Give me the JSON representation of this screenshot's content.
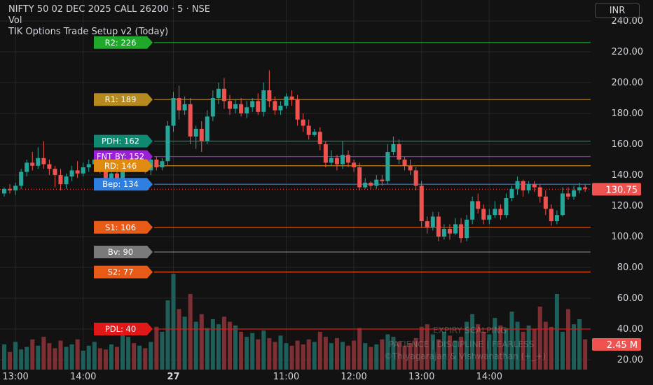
{
  "header": {
    "symbol": "NIFTY 50 02 DEC 2025 CALL 26200 · 5 · NSE",
    "vol_label": "Vol",
    "indicator": "TIK Options Trade Setup v2 (Today)",
    "currency_button": "INR"
  },
  "watermark": {
    "line1": "EXPIRY SCALPING",
    "line2": "PATIENCE | DISCIPLINE | FEARLESS",
    "line3": "©Thiyagarajan & Vishwanathan (+_+)"
  },
  "colors": {
    "bg": "#121212",
    "grid": "#262626",
    "up": "#26a69a",
    "down": "#ef5350",
    "vol_up": "#1f5f5a",
    "vol_down": "#7e2f34"
  },
  "chart_data": {
    "type": "candlestick",
    "ylim": [
      20,
      240
    ],
    "y_ticks": [
      "20.00",
      "40.00",
      "60.00",
      "80.00",
      "100.00",
      "120.00",
      "140.00",
      "160.00",
      "180.00",
      "200.00",
      "220.00",
      "240.00"
    ],
    "x_ticks": [
      {
        "label": "13:00",
        "i": 2
      },
      {
        "label": "14:00",
        "i": 14
      },
      {
        "label": "27",
        "i": 30
      },
      {
        "label": "11:00",
        "i": 50
      },
      {
        "label": "12:00",
        "i": 62
      },
      {
        "label": "13:00",
        "i": 74
      },
      {
        "label": "14:00",
        "i": 86
      }
    ],
    "last_price": {
      "label": "130.75",
      "value": 130.75
    },
    "last_volume": {
      "label": "2.45 M",
      "value": 2.45
    },
    "levels": [
      {
        "label": "R2: 226",
        "value": 226,
        "color": "#1fa82a"
      },
      {
        "label": "R1: 189",
        "value": 189,
        "color": "#b58a1e"
      },
      {
        "label": "PDH: 162",
        "value": 162,
        "color": "#0e8a73"
      },
      {
        "label": "FNT BY: 152",
        "value": 152,
        "color": "#9b1fd8"
      },
      {
        "label": "RD: 146",
        "value": 146,
        "color": "#e08a12"
      },
      {
        "label": "Bep: 134",
        "value": 134,
        "color": "#2f7fe0"
      },
      {
        "label": "S1: 106",
        "value": 106,
        "color": "#e85a18"
      },
      {
        "label": "Bv: 90",
        "value": 90,
        "color": "#7a7a7a"
      },
      {
        "label": "S2: 77",
        "value": 77,
        "color": "#e85a18"
      },
      {
        "label": "PDL: 40",
        "value": 40,
        "color": "#e01818"
      }
    ],
    "candles": [
      [
        128,
        131,
        126,
        132
      ],
      [
        131,
        130,
        128,
        134
      ],
      [
        130,
        133,
        127,
        135
      ],
      [
        133,
        142,
        131,
        144
      ],
      [
        142,
        148,
        139,
        150
      ],
      [
        148,
        146,
        143,
        155
      ],
      [
        146,
        151,
        144,
        158
      ],
      [
        151,
        147,
        144,
        162
      ],
      [
        147,
        144,
        140,
        150
      ],
      [
        144,
        140,
        132,
        146
      ],
      [
        140,
        134,
        130,
        144
      ],
      [
        134,
        139,
        131,
        141
      ],
      [
        139,
        143,
        136,
        146
      ],
      [
        143,
        141,
        138,
        149
      ],
      [
        141,
        145,
        139,
        148
      ],
      [
        145,
        147,
        142,
        150
      ],
      [
        147,
        150,
        146,
        154
      ],
      [
        150,
        144,
        141,
        152
      ],
      [
        144,
        137,
        133,
        147
      ],
      [
        137,
        141,
        135,
        144
      ],
      [
        141,
        137,
        133,
        143
      ],
      [
        137,
        146,
        135,
        148
      ],
      [
        146,
        150,
        144,
        152
      ],
      [
        150,
        145,
        142,
        152
      ],
      [
        145,
        149,
        143,
        151
      ],
      [
        149,
        143,
        141,
        151
      ],
      [
        143,
        150,
        140,
        153
      ],
      [
        150,
        145,
        143,
        152
      ],
      [
        145,
        149,
        143,
        151
      ],
      [
        149,
        172,
        146,
        175
      ],
      [
        172,
        190,
        168,
        194
      ],
      [
        190,
        182,
        176,
        198
      ],
      [
        182,
        186,
        179,
        191
      ],
      [
        186,
        165,
        160,
        190
      ],
      [
        165,
        170,
        157,
        172
      ],
      [
        170,
        162,
        155,
        175
      ],
      [
        162,
        178,
        160,
        182
      ],
      [
        178,
        190,
        175,
        195
      ],
      [
        190,
        196,
        186,
        200
      ],
      [
        196,
        188,
        183,
        203
      ],
      [
        188,
        183,
        179,
        192
      ],
      [
        183,
        186,
        180,
        189
      ],
      [
        186,
        180,
        178,
        190
      ],
      [
        180,
        184,
        177,
        188
      ],
      [
        184,
        188,
        181,
        190
      ],
      [
        188,
        181,
        179,
        193
      ],
      [
        181,
        195,
        178,
        200
      ],
      [
        195,
        188,
        184,
        208
      ],
      [
        188,
        182,
        179,
        191
      ],
      [
        182,
        185,
        179,
        188
      ],
      [
        185,
        191,
        183,
        193
      ],
      [
        191,
        189,
        185,
        195
      ],
      [
        189,
        176,
        172,
        192
      ],
      [
        176,
        172,
        168,
        180
      ],
      [
        172,
        166,
        163,
        176
      ],
      [
        166,
        168,
        165,
        170
      ],
      [
        168,
        160,
        156,
        171
      ],
      [
        160,
        148,
        145,
        162
      ],
      [
        148,
        151,
        146,
        156
      ],
      [
        151,
        147,
        143,
        153
      ],
      [
        147,
        153,
        144,
        162
      ],
      [
        153,
        148,
        145,
        156
      ],
      [
        148,
        145,
        142,
        150
      ],
      [
        145,
        132,
        130,
        148
      ],
      [
        132,
        135,
        131,
        138
      ],
      [
        135,
        133,
        131,
        136
      ],
      [
        133,
        137,
        131,
        140
      ],
      [
        137,
        136,
        133,
        140
      ],
      [
        136,
        155,
        134,
        160
      ],
      [
        155,
        160,
        153,
        165
      ],
      [
        160,
        150,
        147,
        163
      ],
      [
        150,
        146,
        143,
        152
      ],
      [
        146,
        143,
        140,
        150
      ],
      [
        143,
        133,
        130,
        145
      ],
      [
        133,
        110,
        106,
        136
      ],
      [
        110,
        106,
        102,
        113
      ],
      [
        106,
        113,
        104,
        116
      ],
      [
        113,
        100,
        97,
        116
      ],
      [
        100,
        105,
        98,
        108
      ],
      [
        105,
        102,
        98,
        108
      ],
      [
        102,
        108,
        101,
        112
      ],
      [
        108,
        99,
        96,
        112
      ],
      [
        99,
        111,
        97,
        114
      ],
      [
        111,
        123,
        108,
        126
      ],
      [
        123,
        118,
        115,
        128
      ],
      [
        118,
        111,
        108,
        121
      ],
      [
        111,
        114,
        108,
        118
      ],
      [
        114,
        118,
        112,
        123
      ],
      [
        118,
        114,
        111,
        121
      ],
      [
        114,
        125,
        112,
        128
      ],
      [
        125,
        131,
        123,
        133
      ],
      [
        131,
        136,
        127,
        139
      ],
      [
        136,
        130,
        126,
        137
      ],
      [
        130,
        134,
        128,
        136
      ],
      [
        134,
        132,
        129,
        136
      ],
      [
        132,
        126,
        122,
        134
      ],
      [
        126,
        118,
        114,
        130
      ],
      [
        118,
        110,
        107,
        121
      ],
      [
        110,
        114,
        108,
        117
      ],
      [
        114,
        128,
        113,
        132
      ],
      [
        128,
        126,
        124,
        132
      ],
      [
        126,
        130,
        124,
        133
      ],
      [
        130,
        132,
        128,
        135
      ],
      [
        132,
        131,
        129,
        134
      ]
    ],
    "volume": [
      20,
      14,
      22,
      16,
      18,
      24,
      19,
      26,
      21,
      17,
      23,
      18,
      20,
      24,
      15,
      19,
      22,
      17,
      16,
      20,
      18,
      30,
      26,
      21,
      19,
      17,
      22,
      34,
      30,
      55,
      76,
      48,
      42,
      60,
      38,
      44,
      33,
      40,
      36,
      42,
      38,
      35,
      30,
      26,
      29,
      24,
      31,
      25,
      22,
      27,
      21,
      19,
      23,
      20,
      24,
      22,
      30,
      26,
      21,
      25,
      22,
      19,
      23,
      33,
      21,
      18,
      20,
      24,
      28,
      26,
      22,
      19,
      21,
      25,
      34,
      36,
      28,
      24,
      30,
      27,
      23,
      26,
      38,
      44,
      36,
      30,
      28,
      41,
      35,
      33,
      46,
      38,
      30,
      35,
      32,
      50,
      38,
      34,
      60,
      30,
      48,
      36,
      40,
      24
    ],
    "vol_max_m": 14
  }
}
